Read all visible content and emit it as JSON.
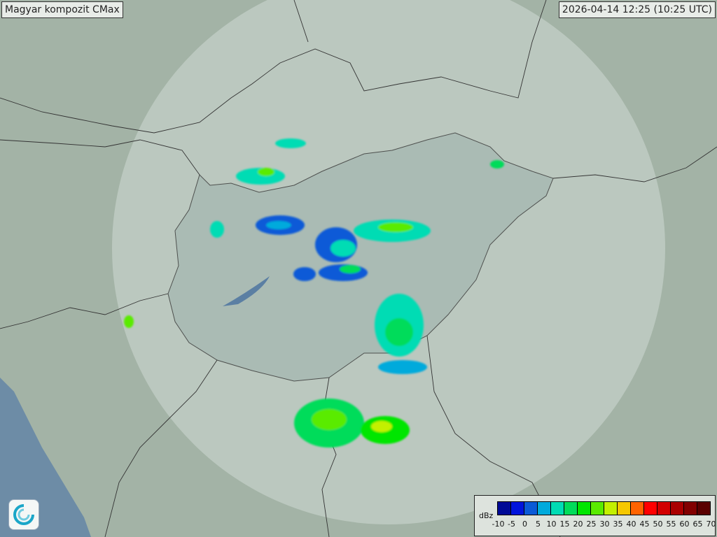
{
  "title": "Magyar kompozit  CMax",
  "timestamp": "2026-04-14 12:25 (10:25 UTC)",
  "legend": {
    "unit": "dBz",
    "ticks": [
      "-10",
      "-5",
      "0",
      "5",
      "10",
      "15",
      "20",
      "25",
      "30",
      "35",
      "40",
      "45",
      "50",
      "55",
      "60",
      "65",
      "70"
    ],
    "colors": [
      "#000a96",
      "#0014dc",
      "#0a5ad7",
      "#00aadc",
      "#00dcb4",
      "#00dc5a",
      "#00e600",
      "#5aeb00",
      "#c3f000",
      "#f5c800",
      "#ff6400",
      "#ff0000",
      "#d20000",
      "#aa0000",
      "#820000",
      "#5a0000"
    ]
  },
  "logo": "met-service-swirl-logo"
}
